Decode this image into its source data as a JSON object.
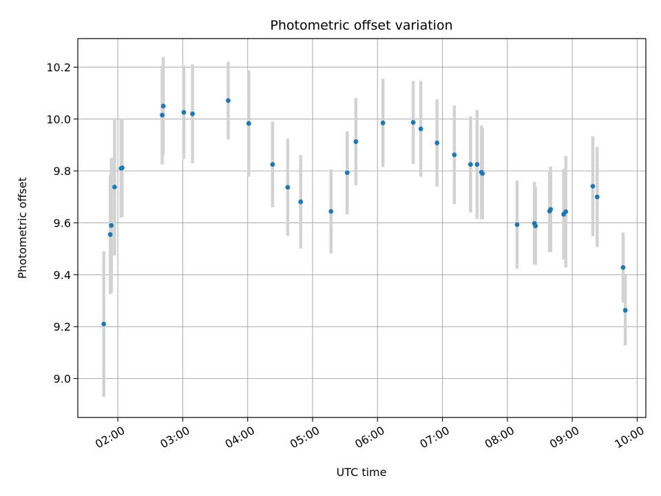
{
  "chart_data": {
    "type": "scatter",
    "title": "Photometric offset variation",
    "xlabel": "UTC time",
    "ylabel": "Photometric offset",
    "grid": true,
    "xlim": [
      "01:23",
      "10:08"
    ],
    "ylim": [
      8.85,
      10.31
    ],
    "x_ticks": [
      "02:00",
      "03:00",
      "04:00",
      "05:00",
      "06:00",
      "07:00",
      "08:00",
      "09:00",
      "10:00"
    ],
    "y_ticks": [
      9.0,
      9.2,
      9.4,
      9.6,
      9.8,
      10.0,
      10.2
    ],
    "marker_color": "#1f77b4",
    "errorbar_color": "#d3d3d3",
    "points": [
      {
        "x": "01:47",
        "y": 9.21,
        "err": 0.28
      },
      {
        "x": "01:53",
        "y": 9.555,
        "err": 0.23
      },
      {
        "x": "01:54",
        "y": 9.59,
        "err": 0.26
      },
      {
        "x": "01:57",
        "y": 9.738,
        "err": 0.265
      },
      {
        "x": "02:03",
        "y": 9.81,
        "err": 0.19
      },
      {
        "x": "02:04",
        "y": 9.812,
        "err": 0.19
      },
      {
        "x": "02:41",
        "y": 10.015,
        "err": 0.19
      },
      {
        "x": "02:42",
        "y": 10.05,
        "err": 0.19
      },
      {
        "x": "03:01",
        "y": 10.026,
        "err": 0.18
      },
      {
        "x": "03:09",
        "y": 10.02,
        "err": 0.19
      },
      {
        "x": "03:42",
        "y": 10.071,
        "err": 0.15
      },
      {
        "x": "04:01",
        "y": 9.983,
        "err": 0.205
      },
      {
        "x": "04:23",
        "y": 9.825,
        "err": 0.165
      },
      {
        "x": "04:37",
        "y": 9.737,
        "err": 0.187
      },
      {
        "x": "04:49",
        "y": 9.681,
        "err": 0.18
      },
      {
        "x": "05:17",
        "y": 9.644,
        "err": 0.162
      },
      {
        "x": "05:32",
        "y": 9.793,
        "err": 0.16
      },
      {
        "x": "05:40",
        "y": 9.913,
        "err": 0.168
      },
      {
        "x": "06:05",
        "y": 9.985,
        "err": 0.17
      },
      {
        "x": "06:33",
        "y": 9.987,
        "err": 0.16
      },
      {
        "x": "06:40",
        "y": 9.962,
        "err": 0.185
      },
      {
        "x": "06:55",
        "y": 9.908,
        "err": 0.168
      },
      {
        "x": "07:11",
        "y": 9.862,
        "err": 0.19
      },
      {
        "x": "07:26",
        "y": 9.825,
        "err": 0.185
      },
      {
        "x": "07:32",
        "y": 9.825,
        "err": 0.21
      },
      {
        "x": "07:36",
        "y": 9.795,
        "err": 0.18
      },
      {
        "x": "07:37",
        "y": 9.79,
        "err": 0.177
      },
      {
        "x": "08:09",
        "y": 9.593,
        "err": 0.17
      },
      {
        "x": "08:25",
        "y": 9.598,
        "err": 0.16
      },
      {
        "x": "08:26",
        "y": 9.588,
        "err": 0.15
      },
      {
        "x": "08:39",
        "y": 9.645,
        "err": 0.158
      },
      {
        "x": "08:40",
        "y": 9.652,
        "err": 0.165
      },
      {
        "x": "08:52",
        "y": 9.633,
        "err": 0.175
      },
      {
        "x": "08:54",
        "y": 9.643,
        "err": 0.215
      },
      {
        "x": "09:19",
        "y": 9.741,
        "err": 0.193
      },
      {
        "x": "09:23",
        "y": 9.7,
        "err": 0.193
      },
      {
        "x": "09:47",
        "y": 9.428,
        "err": 0.135
      },
      {
        "x": "09:49",
        "y": 9.263,
        "err": 0.135
      }
    ]
  }
}
